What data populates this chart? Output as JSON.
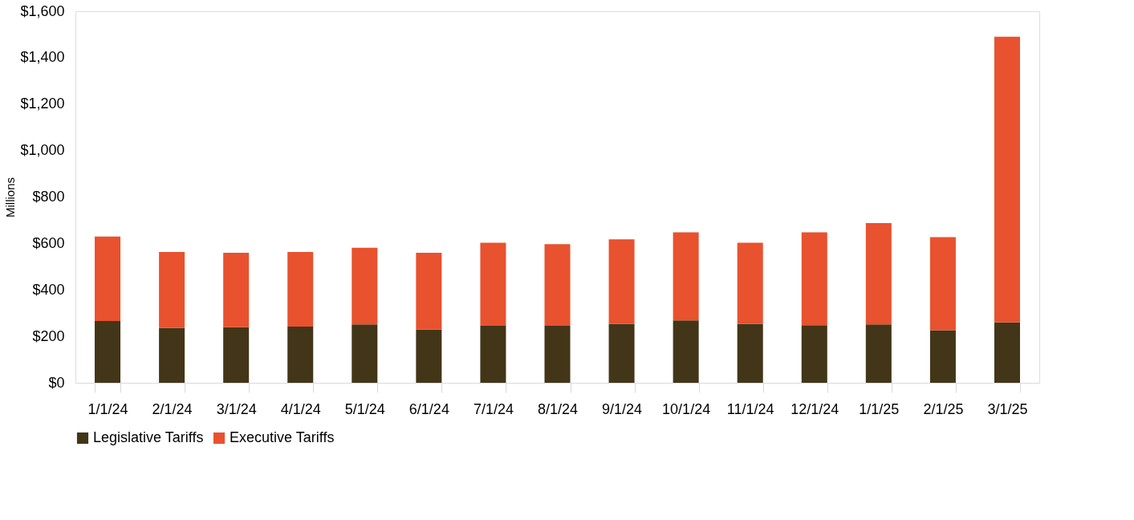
{
  "chart_data": {
    "type": "bar",
    "stacked": true,
    "ylabel": "Millions",
    "categories": [
      "1/1/24",
      "2/1/24",
      "3/1/24",
      "4/1/24",
      "5/1/24",
      "6/1/24",
      "7/1/24",
      "8/1/24",
      "9/1/24",
      "10/1/24",
      "11/1/24",
      "12/1/24",
      "1/1/25",
      "2/1/25",
      "3/1/25"
    ],
    "series": [
      {
        "name": "Legislative Tariffs",
        "color": "#433518",
        "values": [
          266,
          236,
          239,
          242,
          251,
          229,
          245,
          245,
          254,
          269,
          254,
          248,
          251,
          226,
          260
        ]
      },
      {
        "name": "Executive Tariffs",
        "color": "#e8522e",
        "values": [
          364,
          327,
          321,
          321,
          330,
          331,
          358,
          352,
          364,
          379,
          349,
          400,
          437,
          401,
          1230
        ]
      }
    ],
    "ylim": [
      0,
      1600
    ],
    "yticks": [
      {
        "value": 0,
        "label": "$0"
      },
      {
        "value": 200,
        "label": "$200"
      },
      {
        "value": 400,
        "label": "$400"
      },
      {
        "value": 600,
        "label": "$600"
      },
      {
        "value": 800,
        "label": "$800"
      },
      {
        "value": 1000,
        "label": "$1,000"
      },
      {
        "value": 1200,
        "label": "$1,200"
      },
      {
        "value": 1400,
        "label": "$1,400"
      },
      {
        "value": 1600,
        "label": "$1,600"
      }
    ],
    "grid": false,
    "legend": "bottom"
  }
}
